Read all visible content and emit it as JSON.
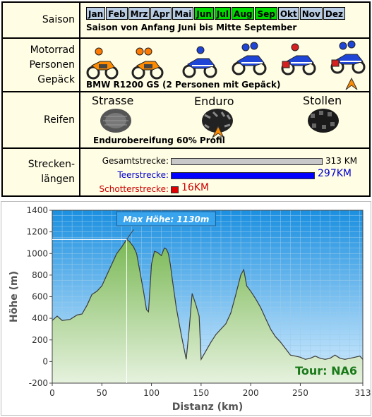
{
  "info": {
    "saison": {
      "label": "Saison",
      "months": [
        {
          "name": "Jan",
          "active": false
        },
        {
          "name": "Feb",
          "active": false
        },
        {
          "name": "Mrz",
          "active": false
        },
        {
          "name": "Apr",
          "active": false
        },
        {
          "name": "Mai",
          "active": false
        },
        {
          "name": "Jun",
          "active": true
        },
        {
          "name": "Jul",
          "active": true
        },
        {
          "name": "Aug",
          "active": true
        },
        {
          "name": "Sep",
          "active": true
        },
        {
          "name": "Okt",
          "active": false
        },
        {
          "name": "Nov",
          "active": false
        },
        {
          "name": "Dez",
          "active": false
        }
      ],
      "description": "Saison von Anfang Juni bis Mitte September"
    },
    "motorrad": {
      "label": "Motorrad\nPersonen\nGepäck",
      "description": "BMW R1200 GS  (2 Personen mit Gepäck)"
    },
    "reifen": {
      "label": "Reifen",
      "types": [
        "Strasse",
        "Enduro",
        "Stollen"
      ],
      "selected_index": 1,
      "description": "Endurobereifung 60% Profil"
    },
    "strecken": {
      "label": "Strecken-\nlängen",
      "rows": [
        {
          "label": "Gesamtstrecke:",
          "value": "313 KM",
          "km": 313,
          "color": "#c8c8c8",
          "text_color": "#000000"
        },
        {
          "label": "Teerstrecke:",
          "value": "297KM",
          "km": 297,
          "color": "#0000ff",
          "text_color": "#0000cc"
        },
        {
          "label": "Schotterstrecke:",
          "value": "16KM",
          "km": 16,
          "color": "#e00000",
          "text_color": "#cc0000"
        }
      ]
    }
  },
  "chart_data": {
    "type": "area",
    "xlabel": "Distanz  (km)",
    "ylabel": "Höhe  (m)",
    "xlim": [
      0,
      313
    ],
    "ylim": [
      -200,
      1400
    ],
    "x_ticks": [
      0,
      50,
      100,
      150,
      200,
      250,
      313
    ],
    "y_ticks": [
      -200,
      0,
      200,
      400,
      600,
      800,
      1000,
      1200,
      1400
    ],
    "grid": true,
    "annotation": {
      "text": "Max Höhe: 1130m",
      "x": 75,
      "y": 1130
    },
    "tour_label": "Tour: NA6",
    "colors": {
      "sky_top": "#1a8fe0",
      "sky_bottom": "#d8efff",
      "fill_top": "#7ab855",
      "fill_bottom": "#e6f2de",
      "line": "#3a3a3a"
    },
    "series": [
      {
        "x": [
          0,
          5,
          10,
          18,
          25,
          30,
          35,
          40,
          45,
          50,
          55,
          60,
          65,
          70,
          75,
          78,
          82,
          85,
          88,
          92,
          95,
          97,
          100,
          103,
          106,
          110,
          113,
          115,
          117,
          119,
          121,
          125,
          130,
          135,
          138,
          141,
          145,
          148,
          150,
          155,
          160,
          165,
          170,
          175,
          180,
          185,
          190,
          193,
          196,
          200,
          205,
          210,
          215,
          220,
          225,
          230,
          235,
          240,
          245,
          250,
          255,
          260,
          265,
          270,
          275,
          280,
          285,
          290,
          295,
          300,
          305,
          310,
          313
        ],
        "y": [
          380,
          420,
          380,
          390,
          430,
          440,
          520,
          620,
          650,
          700,
          800,
          900,
          1000,
          1060,
          1130,
          1110,
          1060,
          1000,
          850,
          650,
          480,
          460,
          900,
          1020,
          1010,
          980,
          1050,
          1040,
          1000,
          900,
          760,
          500,
          250,
          20,
          300,
          630,
          520,
          420,
          20,
          100,
          180,
          250,
          300,
          350,
          450,
          620,
          800,
          850,
          700,
          650,
          580,
          500,
          400,
          300,
          230,
          180,
          120,
          60,
          50,
          40,
          20,
          30,
          50,
          30,
          20,
          30,
          60,
          30,
          20,
          30,
          40,
          50,
          20
        ]
      }
    ]
  }
}
